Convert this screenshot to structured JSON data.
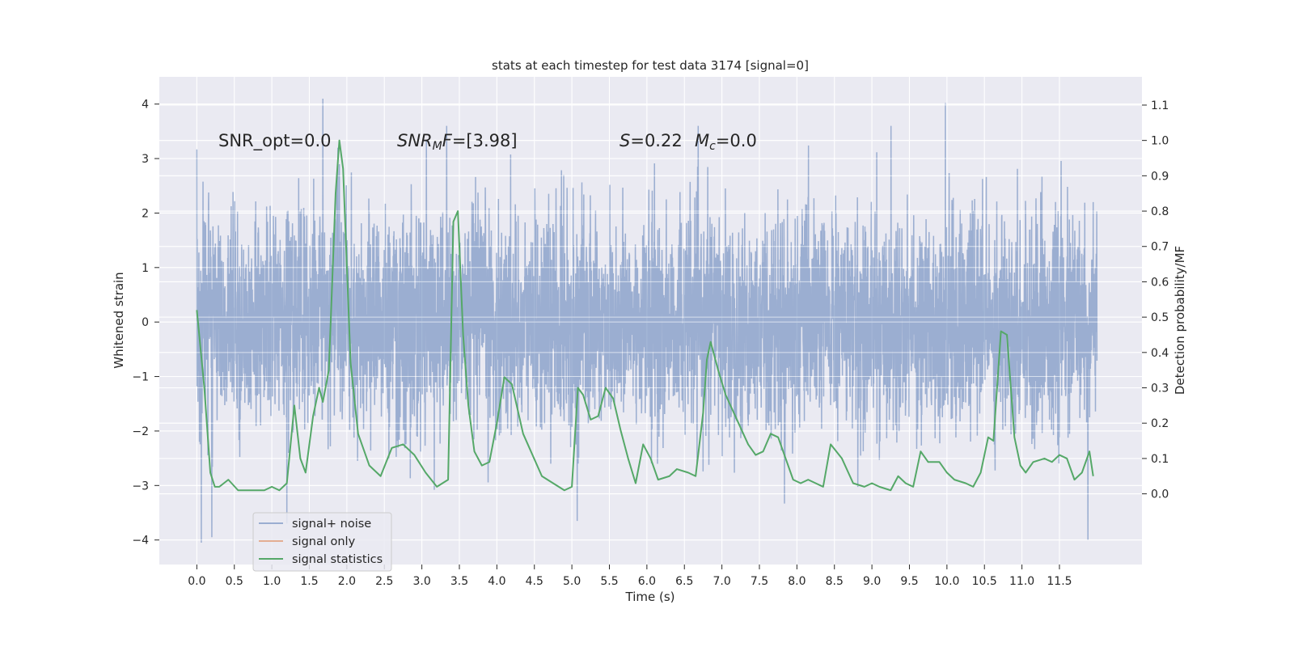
{
  "chart_data": {
    "type": "line",
    "title": "stats at each timestep for test data 3174 [signal=0]",
    "xlabel": "Time (s)",
    "ylabel_left": "Whitened strain",
    "ylabel_right": "Detection probability/MF",
    "xlim": [
      -0.5,
      12.6
    ],
    "ylim_left": [
      -4.45,
      4.5
    ],
    "ylim_right": [
      -0.2,
      1.18
    ],
    "x_ticks": [
      0.0,
      0.5,
      1.0,
      1.5,
      2.0,
      2.5,
      3.0,
      3.5,
      4.0,
      4.5,
      5.0,
      5.5,
      6.0,
      6.5,
      7.0,
      7.5,
      8.0,
      8.5,
      9.0,
      9.5,
      10.0,
      10.5,
      11.0,
      11.5
    ],
    "x_tick_labels": [
      "0.0",
      "0.5",
      "1.0",
      "1.5",
      "2.0",
      "2.5",
      "3.0",
      "3.5",
      "4.0",
      "4.5",
      "5.0",
      "5.5",
      "6.0",
      "6.5",
      "7.0",
      "7.5",
      "8.0",
      "8.5",
      "9.0",
      "9.5",
      "10.0",
      "10.5",
      "11.0",
      "11.5"
    ],
    "y_left_ticks": [
      4,
      3,
      2,
      1,
      0,
      -1,
      -2,
      -3,
      -4
    ],
    "y_left_tick_labels": [
      "4",
      "3",
      "2",
      "1",
      "0",
      "−1",
      "−2",
      "−3",
      "−4"
    ],
    "y_right_ticks": [
      1.1,
      1.0,
      0.9,
      0.8,
      0.7,
      0.6,
      0.5,
      0.4,
      0.3,
      0.2,
      0.1,
      0.0
    ],
    "y_right_tick_labels": [
      "1.1",
      "1.0",
      "0.9",
      "0.8",
      "0.7",
      "0.6",
      "0.5",
      "0.4",
      "0.3",
      "0.2",
      "0.1",
      "0.0"
    ],
    "grid": true,
    "legend_position": "lower-left",
    "colors": {
      "background": "#eaeaf2",
      "grid": "#ffffff",
      "signal_noise": "#4c72b0",
      "signal_only": "#dd8452",
      "signal_statistics": "#55a868"
    },
    "annotations": {
      "snr_opt": "SNR_opt=0.0",
      "snr_mf_name": "SNR",
      "snr_mf_sub": "M",
      "snr_mf_tail": "F",
      "snr_mf_value": "=[3.98]",
      "s_name": "S",
      "s_value": "=0.22",
      "mc_name": "M",
      "mc_sub": "c",
      "mc_value": "=0.0"
    },
    "series": [
      {
        "name": "signal+ noise",
        "axis": "left",
        "style": "dense-noise",
        "x_range": [
          0.0,
          12.0
        ],
        "core_band": [
          -1.9,
          1.95
        ],
        "notable_peaks": [
          {
            "x": 1.68,
            "y": 4.1
          },
          {
            "x": 1.88,
            "y": 3.2
          },
          {
            "x": 3.33,
            "y": 3.6
          },
          {
            "x": 9.98,
            "y": 4.02
          },
          {
            "x": 0.06,
            "y": -4.05
          },
          {
            "x": 0.2,
            "y": -3.95
          },
          {
            "x": 1.2,
            "y": -3.7
          },
          {
            "x": 5.07,
            "y": -3.65
          },
          {
            "x": 11.88,
            "y": -4.0
          }
        ]
      },
      {
        "name": "signal only",
        "axis": "left",
        "values": []
      },
      {
        "name": "signal statistics",
        "axis": "right",
        "x": [
          0.0,
          0.1,
          0.18,
          0.24,
          0.3,
          0.42,
          0.55,
          0.75,
          0.9,
          1.0,
          1.1,
          1.2,
          1.3,
          1.38,
          1.45,
          1.55,
          1.63,
          1.68,
          1.76,
          1.85,
          1.9,
          1.95,
          2.05,
          2.15,
          2.3,
          2.45,
          2.6,
          2.75,
          2.9,
          3.05,
          3.2,
          3.35,
          3.42,
          3.48,
          3.55,
          3.62,
          3.7,
          3.8,
          3.9,
          4.0,
          4.1,
          4.2,
          4.35,
          4.6,
          4.75,
          4.9,
          5.0,
          5.08,
          5.15,
          5.25,
          5.35,
          5.45,
          5.55,
          5.65,
          5.75,
          5.85,
          5.95,
          6.05,
          6.15,
          6.3,
          6.4,
          6.55,
          6.65,
          6.75,
          6.8,
          6.85,
          6.95,
          7.05,
          7.2,
          7.35,
          7.45,
          7.55,
          7.65,
          7.75,
          7.85,
          7.95,
          8.05,
          8.15,
          8.25,
          8.35,
          8.45,
          8.6,
          8.75,
          8.9,
          9.0,
          9.1,
          9.25,
          9.35,
          9.45,
          9.55,
          9.65,
          9.75,
          9.9,
          10.0,
          10.1,
          10.25,
          10.35,
          10.45,
          10.55,
          10.62,
          10.72,
          10.8,
          10.9,
          10.98,
          11.05,
          11.15,
          11.3,
          11.4,
          11.5,
          11.6,
          11.7,
          11.8,
          11.9,
          11.95
        ],
        "values": [
          0.52,
          0.3,
          0.06,
          0.02,
          0.02,
          0.04,
          0.01,
          0.01,
          0.01,
          0.02,
          0.01,
          0.03,
          0.25,
          0.1,
          0.06,
          0.22,
          0.3,
          0.26,
          0.35,
          0.85,
          1.0,
          0.92,
          0.37,
          0.17,
          0.08,
          0.05,
          0.13,
          0.14,
          0.11,
          0.06,
          0.02,
          0.04,
          0.77,
          0.8,
          0.45,
          0.25,
          0.12,
          0.08,
          0.09,
          0.2,
          0.33,
          0.31,
          0.17,
          0.05,
          0.03,
          0.01,
          0.02,
          0.3,
          0.28,
          0.21,
          0.22,
          0.3,
          0.27,
          0.18,
          0.1,
          0.03,
          0.14,
          0.1,
          0.04,
          0.05,
          0.07,
          0.06,
          0.05,
          0.23,
          0.38,
          0.43,
          0.35,
          0.28,
          0.21,
          0.14,
          0.11,
          0.12,
          0.17,
          0.16,
          0.1,
          0.04,
          0.03,
          0.04,
          0.03,
          0.02,
          0.14,
          0.1,
          0.03,
          0.02,
          0.03,
          0.02,
          0.01,
          0.05,
          0.03,
          0.02,
          0.12,
          0.09,
          0.09,
          0.06,
          0.04,
          0.03,
          0.02,
          0.06,
          0.16,
          0.15,
          0.46,
          0.45,
          0.16,
          0.08,
          0.06,
          0.09,
          0.1,
          0.09,
          0.11,
          0.1,
          0.04,
          0.06,
          0.12,
          0.05
        ]
      }
    ]
  }
}
